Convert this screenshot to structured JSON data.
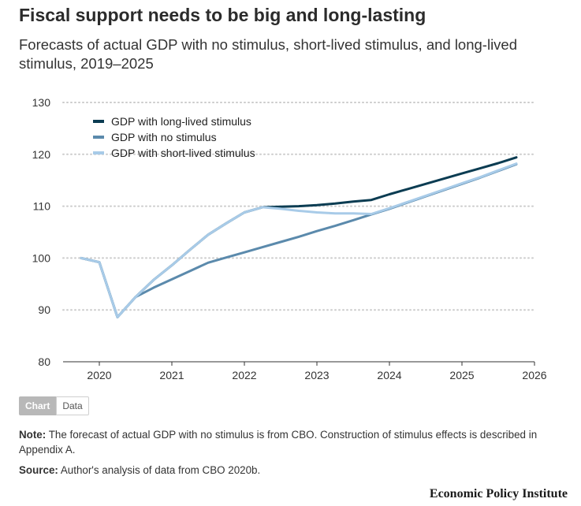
{
  "chart_data": {
    "type": "line",
    "title": "Fiscal support needs to be big and long-lasting",
    "subtitle": "Forecasts of actual GDP with no stimulus, short-lived stimulus, and long-lived stimulus, 2019–2025",
    "xlabel": "",
    "ylabel": "",
    "xlim": [
      2019.5,
      2026
    ],
    "ylim": [
      80,
      130
    ],
    "x_ticks": [
      "2020",
      "2021",
      "2022",
      "2023",
      "2024",
      "2025",
      "2026"
    ],
    "y_ticks": [
      "80",
      "90",
      "100",
      "110",
      "120",
      "130"
    ],
    "grid": "horizontal dotted",
    "legend_position": "top-left",
    "series": [
      {
        "name": "GDP with long-lived stimulus",
        "color": "#0b3c52",
        "points": [
          [
            2019.75,
            100
          ],
          [
            2020.0,
            99.2
          ],
          [
            2020.25,
            88.6
          ],
          [
            2020.5,
            92.5
          ],
          [
            2020.75,
            95.8
          ],
          [
            2021.0,
            98.6
          ],
          [
            2021.25,
            101.6
          ],
          [
            2021.5,
            104.5
          ],
          [
            2021.75,
            106.7
          ],
          [
            2022.0,
            108.8
          ],
          [
            2022.25,
            109.8
          ],
          [
            2022.5,
            109.9
          ],
          [
            2022.75,
            110.0
          ],
          [
            2023.0,
            110.2
          ],
          [
            2023.25,
            110.5
          ],
          [
            2023.5,
            110.9
          ],
          [
            2023.75,
            111.2
          ],
          [
            2024.0,
            112.3
          ],
          [
            2024.25,
            113.3
          ],
          [
            2024.5,
            114.3
          ],
          [
            2024.75,
            115.3
          ],
          [
            2025.0,
            116.3
          ],
          [
            2025.25,
            117.3
          ],
          [
            2025.5,
            118.3
          ],
          [
            2025.75,
            119.4
          ]
        ]
      },
      {
        "name": "GDP with no stimulus",
        "color": "#5b8aac",
        "points": [
          [
            2019.75,
            100
          ],
          [
            2020.0,
            99.2
          ],
          [
            2020.25,
            88.6
          ],
          [
            2020.5,
            92.5
          ],
          [
            2020.75,
            94.3
          ],
          [
            2021.0,
            95.9
          ],
          [
            2021.25,
            97.5
          ],
          [
            2021.5,
            99.1
          ],
          [
            2021.75,
            100.1
          ],
          [
            2022.0,
            101.1
          ],
          [
            2022.25,
            102.1
          ],
          [
            2022.5,
            103.1
          ],
          [
            2022.75,
            104.1
          ],
          [
            2023.0,
            105.2
          ],
          [
            2023.25,
            106.2
          ],
          [
            2023.5,
            107.3
          ],
          [
            2023.75,
            108.4
          ],
          [
            2024.0,
            109.5
          ],
          [
            2024.25,
            110.7
          ],
          [
            2024.5,
            111.9
          ],
          [
            2024.75,
            113.1
          ],
          [
            2025.0,
            114.3
          ],
          [
            2025.25,
            115.5
          ],
          [
            2025.5,
            116.8
          ],
          [
            2025.75,
            118.1
          ]
        ]
      },
      {
        "name": "GDP with short-lived stimulus",
        "color": "#a8cbe8",
        "points": [
          [
            2019.75,
            100
          ],
          [
            2020.0,
            99.2
          ],
          [
            2020.25,
            88.6
          ],
          [
            2020.5,
            92.5
          ],
          [
            2020.75,
            95.8
          ],
          [
            2021.0,
            98.6
          ],
          [
            2021.25,
            101.6
          ],
          [
            2021.5,
            104.5
          ],
          [
            2021.75,
            106.7
          ],
          [
            2022.0,
            108.8
          ],
          [
            2022.25,
            109.8
          ],
          [
            2022.5,
            109.5
          ],
          [
            2022.75,
            109.1
          ],
          [
            2023.0,
            108.8
          ],
          [
            2023.25,
            108.6
          ],
          [
            2023.5,
            108.6
          ],
          [
            2023.75,
            108.5
          ],
          [
            2024.0,
            109.6
          ],
          [
            2024.25,
            110.8
          ],
          [
            2024.5,
            112.0
          ],
          [
            2024.75,
            113.2
          ],
          [
            2025.0,
            114.4
          ],
          [
            2025.25,
            115.6
          ],
          [
            2025.5,
            116.9
          ],
          [
            2025.75,
            118.2
          ]
        ]
      }
    ]
  },
  "toggle": {
    "chart_label": "Chart",
    "data_label": "Data"
  },
  "note": {
    "label": "Note:",
    "text": " The forecast of actual GDP with no stimulus is from CBO. Construction of stimulus effects is described in Appendix A."
  },
  "source": {
    "label": "Source:",
    "text": " Author's analysis of data from CBO 2020b."
  },
  "brand": "Economic Policy Institute"
}
